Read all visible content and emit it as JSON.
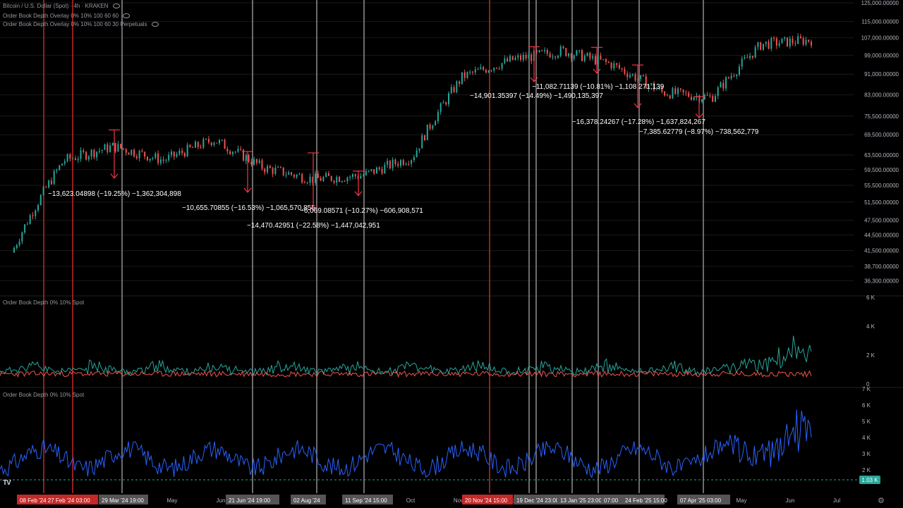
{
  "header": {
    "title": "Bitcoin / U.S. Dollar (Spot) · 4h · KRAKEN",
    "overlay1": "Order Book Depth Overlay 0% 10% 100 60 60",
    "overlay2": "Order Book Depth Overlay 0% 10% 100 60 30 Perpetuals",
    "pane2_label": "Order Book Depth 0% 10% Spot",
    "pane3_label": "Order Book Depth 0% 10% Spot"
  },
  "colors": {
    "background": "#000000",
    "up_candle": "#26a69a",
    "down_candle": "#ef5350",
    "grid": "#1a1a1a",
    "vline_gray": "#8f8f8f",
    "vline_red": "#c62828",
    "bid_depth": "#26a69a",
    "ask_depth": "#ef5350",
    "total_depth": "#2962ff",
    "annotation_arrow": "#f23645",
    "current_badge": "#26a69a"
  },
  "chart_data": [
    {
      "type": "line",
      "series": [
        {
          "name": "Bitcoin / U.S. Dollar (Spot) · 4h · KRAKEN",
          "style": "candlestick"
        }
      ],
      "x": [
        "Feb '24",
        "Mar '24",
        "Apr '24",
        "May '24",
        "Jun '24",
        "Jul '24",
        "Aug '24",
        "Sep '24",
        "Oct '24",
        "Nov '24",
        "Dec '24",
        "Jan '25",
        "Feb '25",
        "Mar '25",
        "Apr '25",
        "May '25",
        "Jun '25"
      ],
      "close_approx": [
        42000,
        62000,
        66000,
        62000,
        68000,
        60000,
        57000,
        58000,
        63000,
        90000,
        97000,
        101000,
        95000,
        84000,
        82000,
        104000,
        106000
      ],
      "ylim": [
        35000,
        125000
      ],
      "yscale": "log",
      "y_ticks": [
        "125,000.00000",
        "115,000.00000",
        "107,000.00000",
        "99,000.00000",
        "91,000.00000",
        "83,000.00000",
        "75,500.00000",
        "69,500.00000",
        "63,500.00000",
        "59,500.00000",
        "55,500.00000",
        "51,500.00000",
        "47,500.00000",
        "44,500.00000",
        "41,500.00000",
        "38,700.00000",
        "36,300.00000"
      ],
      "annotations": [
        {
          "text": "−13,623.04898 (−19.25%) −1,362,304,898",
          "x": "Apr '24",
          "from": 71000,
          "to": 57300
        },
        {
          "text": "−10,655.70855 (−16.53%) −1,065,570,855",
          "x": "Jul '24",
          "from": 64500,
          "to": 53800
        },
        {
          "text": "−14,470.42951 (−22.58%) −1,447,042,951",
          "x": "Aug '24",
          "from": 64100,
          "to": 49600
        },
        {
          "text": "−6,069.08571 (−10.27%) −606,908,571",
          "x": "Sep '24",
          "from": 59100,
          "to": 53000
        },
        {
          "text": "−14,901.35397 (−14.49%) −1,490,135,397",
          "x": "Dec '24",
          "from": 102800,
          "to": 88000
        },
        {
          "text": "−11,082.71139 (−10.81%) −1,108,271,139",
          "x": "Jan '25",
          "from": 102500,
          "to": 91400
        },
        {
          "text": "−16,378.24267 (−17.28%) −1,637,824,267",
          "x": "Feb '25",
          "from": 94800,
          "to": 78400
        },
        {
          "text": "−7,385.62779 (−8.97%) −738,562,779",
          "x": "Apr '25",
          "from": 82300,
          "to": 74900
        }
      ]
    },
    {
      "type": "line",
      "title": "Order Book Depth 0% 10% Spot",
      "series": [
        {
          "name": "Bids"
        },
        {
          "name": "Asks"
        }
      ],
      "ylim": [
        0,
        6000
      ],
      "y_ticks": [
        "6 K",
        "4 K",
        "2 K",
        "0"
      ]
    },
    {
      "type": "line",
      "title": "Order Book Depth 0% 10% Spot",
      "series": [
        {
          "name": "Total"
        }
      ],
      "ylim": [
        1000,
        7000
      ],
      "y_ticks": [
        "7 K",
        "6 K",
        "5 K",
        "4 K",
        "3 K",
        "2 K"
      ],
      "current_value": "1.03 K"
    }
  ],
  "x_axis": {
    "ticks": [
      "Apr",
      "May",
      "Jun",
      "Jul",
      "Aug",
      "Sep",
      "Oct",
      "Nov",
      "Dec",
      "Feb",
      "Mar",
      "Apr",
      "May",
      "Jun",
      "Jul"
    ],
    "highlight_labels": [
      {
        "text": "08 Feb '24",
        "color": "red"
      },
      {
        "text": "27 Feb '24",
        "color": "red"
      },
      {
        "text": "03:00",
        "color": "gray"
      },
      {
        "text": "29 Mar '24",
        "color": "gray"
      },
      {
        "text": "19:00",
        "color": "gray"
      },
      {
        "text": "21 Jun '24",
        "color": "gray"
      },
      {
        "text": "19:00",
        "color": "gray"
      },
      {
        "text": "02 Aug '24",
        "color": "gray"
      },
      {
        "text": "11 Sep '24",
        "color": "gray"
      },
      {
        "text": "15:00",
        "color": "gray"
      },
      {
        "text": "20 Nov '24",
        "color": "red"
      },
      {
        "text": "15:00",
        "color": "gray"
      },
      {
        "text": "19 Dec '24",
        "color": "gray"
      },
      {
        "text": "23:00",
        "color": "gray"
      },
      {
        "text": "13 Jan '25",
        "color": "gray"
      },
      {
        "text": "23:00",
        "color": "gray"
      },
      {
        "text": "07:00",
        "color": "gray"
      },
      {
        "text": "24 Feb '25",
        "color": "gray"
      },
      {
        "text": "15:00",
        "color": "gray"
      },
      {
        "text": "07 Apr '25",
        "color": "gray"
      },
      {
        "text": "03:00",
        "color": "gray"
      }
    ]
  },
  "icons": {
    "logo": "tradingview-logo-icon",
    "settings": "gear-icon",
    "eye": "eye-icon"
  },
  "logo_text": "TV",
  "gear_glyph": "⚙"
}
